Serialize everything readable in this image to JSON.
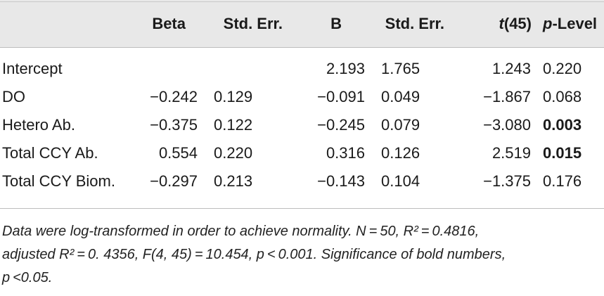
{
  "table": {
    "columns": [
      {
        "label": "",
        "italic_prefix": ""
      },
      {
        "label": "Beta",
        "italic_prefix": ""
      },
      {
        "label": "Std. Err.",
        "italic_prefix": ""
      },
      {
        "label": "B",
        "italic_prefix": ""
      },
      {
        "label": "Std. Err.",
        "italic_prefix": ""
      },
      {
        "label": "(45)",
        "italic_prefix": "t"
      },
      {
        "label": "-Level",
        "italic_prefix": "p"
      }
    ],
    "rows": [
      {
        "label": "Intercept",
        "beta": "",
        "beta_se": "",
        "b": "2.193",
        "b_se": "1.765",
        "t": "1.243",
        "p": "0.220",
        "p_bold": false
      },
      {
        "label": "DO",
        "beta": "−0.242",
        "beta_se": "0.129",
        "b": "−0.091",
        "b_se": "0.049",
        "t": "−1.867",
        "p": "0.068",
        "p_bold": false
      },
      {
        "label": "Hetero Ab.",
        "beta": "−0.375",
        "beta_se": "0.122",
        "b": "−0.245",
        "b_se": "0.079",
        "t": "−3.080",
        "p": "0.003",
        "p_bold": true
      },
      {
        "label": "Total CCY Ab.",
        "beta": "0.554",
        "beta_se": "0.220",
        "b": "0.316",
        "b_se": "0.126",
        "t": "2.519",
        "p": "0.015",
        "p_bold": true
      },
      {
        "label": "Total CCY Biom.",
        "beta": "−0.297",
        "beta_se": "0.213",
        "b": "−0.143",
        "b_se": "0.104",
        "t": "−1.375",
        "p": "0.176",
        "p_bold": false
      }
    ]
  },
  "footnote": {
    "line1": "Data were log-transformed in order to achieve normality. N = 50, R² = 0.4816,",
    "line2": "adjusted R² = 0. 4356, F(4, 45) = 10.454, p < 0.001. Significance of bold numbers,",
    "line3": "p <0.05."
  },
  "colors": {
    "header_band": "#e8e8e8",
    "rule": "#bdbdbd",
    "text": "#1a1a1a"
  }
}
